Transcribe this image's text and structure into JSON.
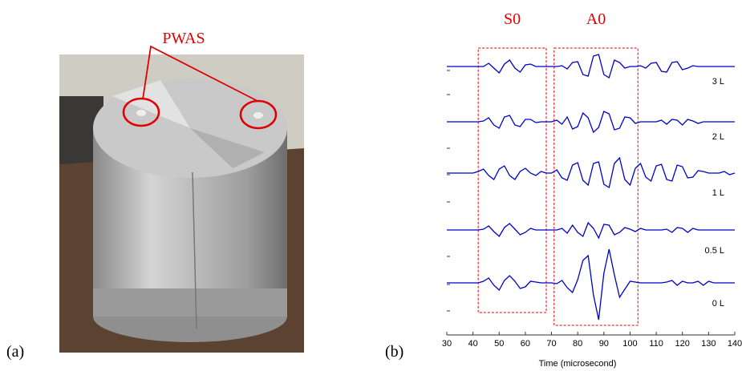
{
  "panel_a": {
    "label": "(a)",
    "annotation": "PWAS"
  },
  "chart_data": {
    "type": "line",
    "panel_label": "(b)",
    "xlabel": "Time (microsecond)",
    "xlim": [
      30,
      140
    ],
    "xticks": [
      30,
      40,
      50,
      60,
      70,
      80,
      90,
      100,
      110,
      120,
      130,
      140
    ],
    "windows": [
      {
        "label": "S0",
        "xlim": [
          42,
          68
        ]
      },
      {
        "label": "A0",
        "xlim": [
          71,
          103
        ]
      }
    ],
    "x": [
      30,
      32,
      34,
      36,
      38,
      40,
      42,
      44,
      46,
      48,
      50,
      52,
      54,
      56,
      58,
      60,
      62,
      64,
      66,
      68,
      70,
      72,
      74,
      76,
      78,
      80,
      82,
      84,
      86,
      88,
      90,
      92,
      94,
      96,
      98,
      100,
      102,
      104,
      106,
      108,
      110,
      112,
      114,
      116,
      118,
      120,
      122,
      124,
      126,
      128,
      130,
      132,
      134,
      136,
      138,
      140
    ],
    "series": [
      {
        "name": "3 L",
        "color": "#0000cc",
        "values": [
          0,
          0,
          0,
          0,
          0,
          0,
          0,
          0,
          0.4,
          -0.2,
          -0.8,
          0.3,
          0.8,
          -0.2,
          -0.7,
          0.2,
          0.3,
          0,
          0,
          0,
          0,
          0,
          0.1,
          -0.3,
          0.5,
          0.6,
          -1.0,
          -1.2,
          1.3,
          1.5,
          -1.0,
          -1.4,
          0.8,
          0.5,
          -0.2,
          0,
          0,
          0.1,
          -0.2,
          0.4,
          0.5,
          -0.6,
          -0.7,
          0.5,
          0.6,
          -0.4,
          -0.2,
          0.1,
          0,
          0,
          0,
          0,
          0,
          0,
          0,
          0
        ]
      },
      {
        "name": "2 L",
        "color": "#0000cc",
        "values": [
          0,
          0,
          0,
          0,
          0,
          0,
          0,
          0.1,
          0.5,
          -0.4,
          -0.8,
          0.6,
          0.8,
          -0.4,
          -0.6,
          0.3,
          0.3,
          -0.1,
          0,
          0,
          0,
          0.2,
          -0.3,
          0.6,
          -0.9,
          -0.6,
          1.1,
          0.5,
          -1.3,
          -0.7,
          1.3,
          1.0,
          -1.0,
          -0.8,
          0.6,
          0.5,
          -0.2,
          0,
          0,
          0,
          0,
          0.2,
          -0.3,
          0.3,
          0.2,
          -0.4,
          0.3,
          0.1,
          -0.2,
          0,
          0,
          0,
          0,
          0,
          0,
          0
        ]
      },
      {
        "name": "1 L",
        "color": "#0000cc",
        "values": [
          0,
          0,
          0,
          0,
          0,
          0,
          0.2,
          0.5,
          -0.3,
          -0.8,
          0.5,
          0.9,
          -0.3,
          -0.8,
          0.2,
          0.6,
          0,
          -0.3,
          0.2,
          0,
          0,
          0.4,
          -0.6,
          -0.9,
          1.0,
          1.3,
          -0.9,
          -1.5,
          1.2,
          1.4,
          -1.4,
          -1.8,
          1.2,
          1.9,
          -0.8,
          -1.5,
          0.6,
          1.2,
          -0.5,
          -1.0,
          0.9,
          1.1,
          -0.8,
          -1.0,
          1.0,
          0.8,
          -0.6,
          -0.5,
          0.3,
          0.2,
          0,
          0,
          0,
          0.2,
          -0.2,
          0
        ]
      },
      {
        "name": "0.5 L",
        "color": "#0000cc",
        "values": [
          0,
          0,
          0,
          0,
          0,
          0,
          0,
          0.1,
          0.5,
          -0.2,
          -0.8,
          0.3,
          0.8,
          0.1,
          -0.6,
          -0.3,
          0.2,
          0,
          0,
          0,
          0,
          0,
          0.2,
          -0.4,
          0.6,
          -0.3,
          -0.8,
          0.9,
          0.2,
          -1.0,
          0.7,
          0.6,
          -0.6,
          -0.3,
          0.3,
          0.1,
          -0.2,
          0.2,
          0,
          0,
          0,
          0,
          0.1,
          -0.3,
          0.3,
          0.2,
          -0.3,
          0.2,
          0,
          0,
          0,
          0,
          0,
          0,
          0,
          0
        ]
      },
      {
        "name": "0 L",
        "color": "#0000cc",
        "values": [
          0,
          0,
          0,
          0,
          0,
          0,
          0,
          0.2,
          0.6,
          -0.3,
          -0.9,
          0.3,
          0.9,
          0.2,
          -0.7,
          -0.5,
          0.2,
          0.1,
          0,
          0,
          0,
          -0.1,
          0.3,
          -0.6,
          -1.2,
          0.4,
          2.8,
          3.4,
          -1.5,
          -4.6,
          1.2,
          4.2,
          1.0,
          -1.8,
          -0.8,
          0.2,
          0.1,
          0,
          0,
          0,
          0,
          0,
          0.1,
          0.3,
          -0.3,
          0.2,
          0,
          0,
          0.2,
          -0.3,
          0.2,
          0,
          0,
          0,
          0,
          0
        ]
      }
    ]
  }
}
